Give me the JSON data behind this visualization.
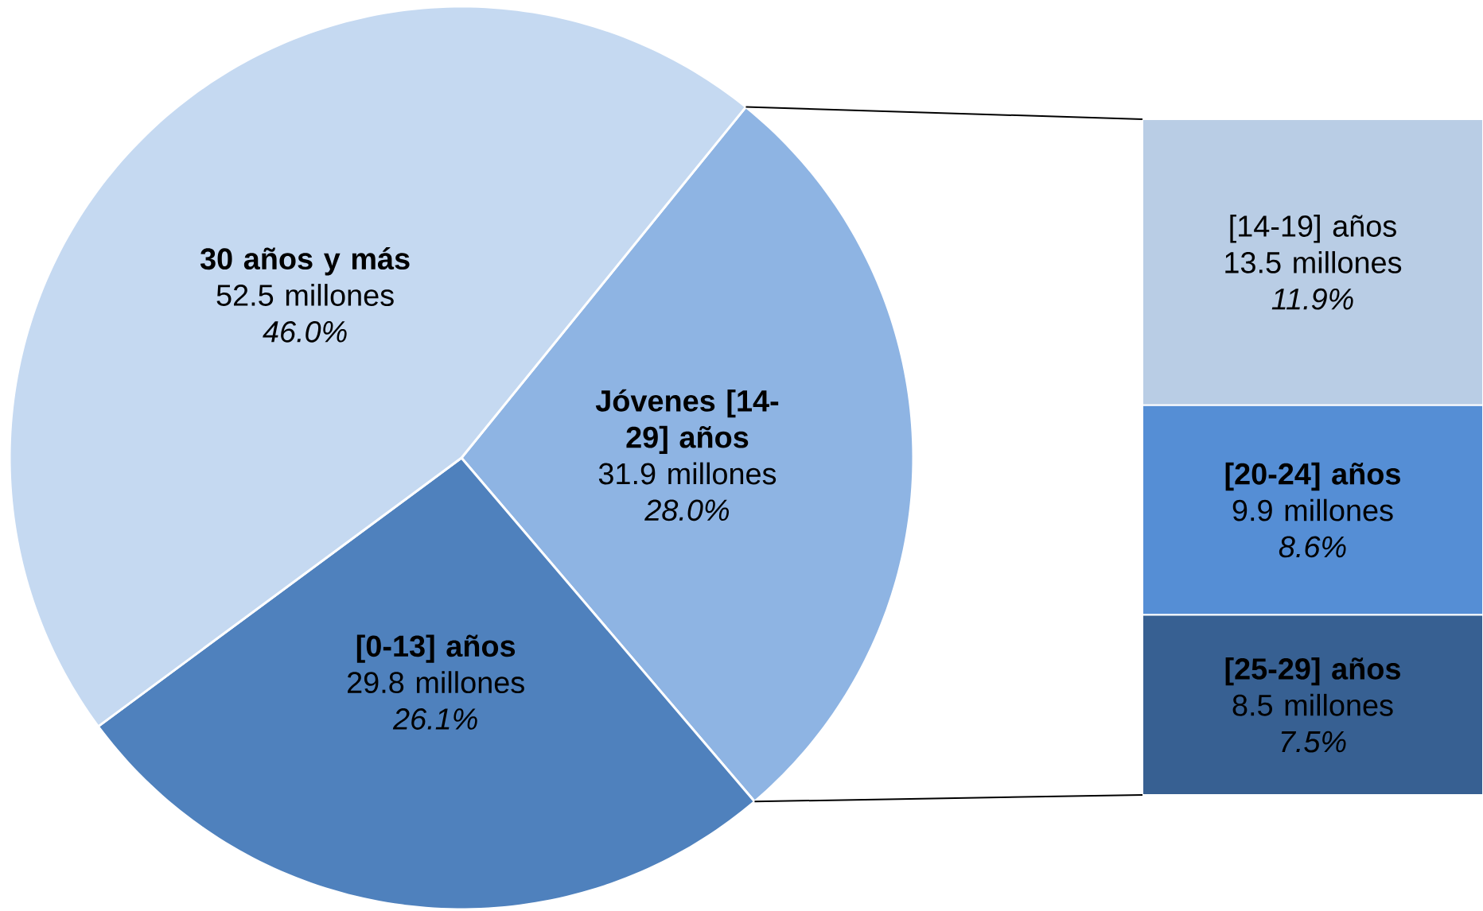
{
  "chart_data": [
    {
      "type": "pie",
      "categories": [
        "Jóvenes [14-29] años",
        "[0-13] años",
        "30 años y más"
      ],
      "values": [
        31.9,
        29.8,
        52.5
      ],
      "colors": [
        "#8eb4e3",
        "#4f81bd",
        "#c5d9f1"
      ],
      "value_labels": [
        "31.9 millones",
        "29.8 millones",
        "52.5 millones"
      ],
      "annotations": [
        "28.0%",
        "26.1%",
        "46.0%"
      ]
    },
    {
      "type": "bar",
      "stacked": true,
      "categories": [
        null
      ],
      "series": [
        {
          "name": "**[25-29] años**",
          "color": "#376092",
          "values": [
            8.5
          ],
          "value_labels": [
            "8.5 millones"
          ]
        },
        {
          "name": "**[20-24] años**",
          "color": "#558ed5",
          "values": [
            9.9
          ],
          "value_labels": [
            "9.9 millones"
          ]
        },
        {
          "name": "[14-19] años",
          "color": "#b9cde5",
          "values": [
            13.5
          ],
          "value_labels": [
            "13.5 millones"
          ]
        }
      ],
      "annotations": [
        "7.5%",
        "8.6%",
        "11.9%"
      ]
    }
  ]
}
